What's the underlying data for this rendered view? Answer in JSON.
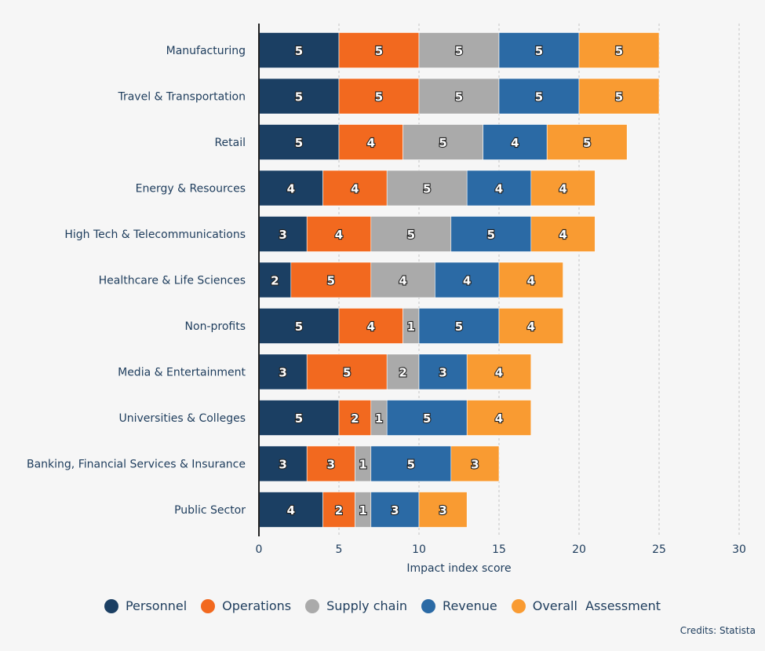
{
  "chart_data": {
    "type": "bar",
    "orientation": "horizontal",
    "stacked": true,
    "categories": [
      "Manufacturing",
      "Travel  & Transportation",
      "Retail",
      "Energy & Resources",
      "High Tech & Telecommunications",
      "Healthcare & Life Sciences",
      "Non-profits",
      "Media & Entertainment",
      "Universities & Colleges",
      "Banking, Financial Services & Insurance",
      "Public Sector"
    ],
    "series": [
      {
        "name": "Personnel",
        "color": "#1b3f63",
        "values": [
          5,
          5,
          5,
          4,
          3,
          2,
          5,
          3,
          5,
          3,
          4
        ]
      },
      {
        "name": "Operations",
        "color": "#f2691f",
        "values": [
          5,
          5,
          4,
          4,
          4,
          5,
          4,
          5,
          2,
          3,
          2
        ]
      },
      {
        "name": "Supply chain",
        "color": "#aaaaaa",
        "values": [
          5,
          5,
          5,
          5,
          5,
          4,
          1,
          2,
          1,
          1,
          1
        ]
      },
      {
        "name": "Revenue",
        "color": "#2b6aa5",
        "values": [
          5,
          5,
          4,
          4,
          5,
          4,
          5,
          3,
          5,
          5,
          3
        ]
      },
      {
        "name": "Overall  Assessment",
        "color": "#f99b32",
        "values": [
          5,
          5,
          5,
          4,
          4,
          4,
          4,
          4,
          4,
          3,
          3
        ]
      }
    ],
    "xlabel": "Impact index score",
    "xlim": [
      0,
      30
    ],
    "xticks": [
      0,
      5,
      10,
      15,
      20,
      25,
      30
    ],
    "grid": true,
    "legend_position": "bottom",
    "data_labels": true
  },
  "credits": "Credits: Statista"
}
